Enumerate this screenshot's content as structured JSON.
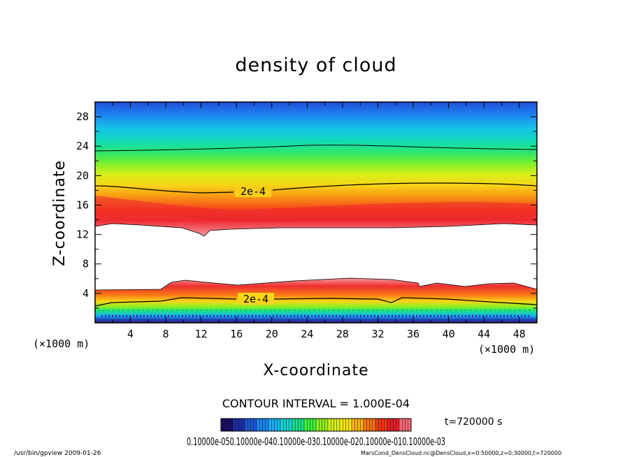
{
  "chart_data": {
    "type": "heatmap",
    "title": "density of cloud",
    "xlabel": "X-coordinate",
    "ylabel": "Z-coordinate",
    "x_unit": "(×1000 m)",
    "y_unit": "(×1000 m)",
    "xlim": [
      0,
      50
    ],
    "ylim": [
      0,
      30
    ],
    "x_ticks": [
      4,
      8,
      12,
      16,
      20,
      24,
      28,
      32,
      36,
      40,
      44,
      48
    ],
    "y_ticks": [
      4,
      8,
      12,
      16,
      20,
      24,
      28
    ],
    "contour_interval": "CONTOUR INTERVAL = 1.000E-04",
    "contour_labels": [
      "2e-4",
      "2e-4"
    ],
    "colorbar_min": 0.0,
    "colorbar_max": 0.0003,
    "colorbar_label": "0.10000e-050.10000e-040.10000e-030.10000e-020.10000e-010.10000e-03",
    "colorbar_colors": [
      "#1a0f66",
      "#1e2fa8",
      "#1f58d6",
      "#1c86f0",
      "#17b3f2",
      "#12d6d0",
      "#18e08a",
      "#3ef03a",
      "#8ef020",
      "#d6f01c",
      "#f7e617",
      "#fbb214",
      "#f87512",
      "#f43a15",
      "#ea1f2a",
      "#f06a74"
    ],
    "upper_band": {
      "bottom_z_km": 13,
      "top_z_km": 30,
      "contour_2e4_z_km": 18.5
    },
    "lower_band": {
      "bottom_z_km": 0,
      "top_z_km": 4.7,
      "contour_2e4_z_km": 3.0
    }
  },
  "footer": {
    "time": "t=720000  s",
    "left": "/usr/bin/gpview  2009-01-26",
    "right": "MarsCond_DensCloud.nc@DensCloud,x=0:50000,z=0:30000,t=720000"
  }
}
